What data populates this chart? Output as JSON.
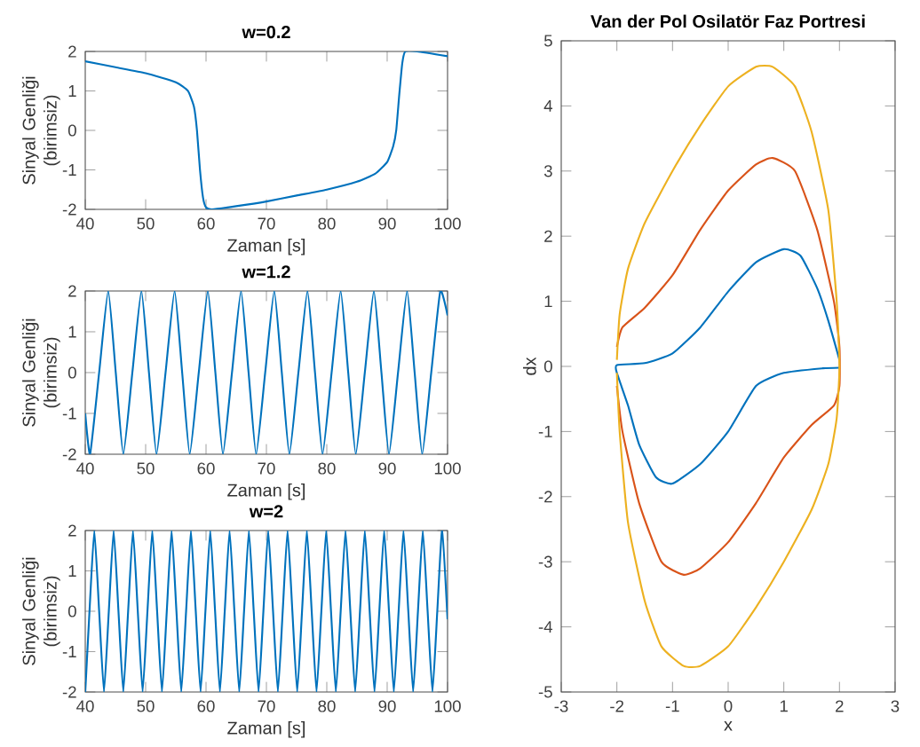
{
  "chart_data": [
    {
      "type": "line",
      "title": "w=0.2",
      "xlabel": "Zaman [s]",
      "ylabel": "Sinyal Genliği (birimsiz)",
      "color": "#0072bd",
      "x": [
        40,
        45,
        50,
        55,
        57,
        58,
        58.5,
        59,
        59.5,
        60,
        61,
        65,
        70,
        75,
        80,
        85,
        88,
        90,
        91,
        91.5,
        92,
        92.5,
        93,
        95,
        100
      ],
      "values": [
        1.75,
        1.6,
        1.45,
        1.22,
        1.0,
        0.6,
        0,
        -1,
        -1.7,
        -1.95,
        -2,
        -1.92,
        -1.8,
        -1.65,
        -1.5,
        -1.3,
        -1.1,
        -0.8,
        -0.4,
        0,
        0.9,
        1.7,
        2,
        2,
        1.88
      ],
      "xlim": [
        40,
        100
      ],
      "ylim": [
        -2,
        2
      ],
      "xticks": [
        40,
        50,
        60,
        70,
        80,
        90,
        100
      ],
      "yticks": [
        -2,
        -1,
        0,
        1,
        2
      ]
    },
    {
      "type": "line",
      "title": "w=1.2",
      "xlabel": "Zaman [s]",
      "ylabel": "Sinyal Genliği (birimsiz)",
      "color": "#0072bd",
      "x": [
        40,
        40.8,
        42.3,
        43.8,
        45.05,
        46.3,
        47.8,
        49.3,
        50.55,
        51.8,
        53.3,
        54.8,
        56.05,
        57.3,
        58.8,
        60.3,
        61.55,
        62.8,
        64.3,
        65.8,
        67.05,
        68.3,
        69.8,
        71.3,
        72.55,
        73.8,
        75.3,
        76.8,
        78.05,
        79.3,
        80.8,
        82.3,
        83.55,
        84.8,
        86.3,
        87.8,
        89.05,
        90.3,
        91.8,
        93.3,
        94.55,
        95.8,
        97.3,
        98.8,
        100
      ],
      "values": [
        -1,
        -2,
        0,
        2,
        0,
        -2,
        0,
        2,
        0,
        -2,
        0,
        2,
        0,
        -2,
        0,
        2,
        0,
        -2,
        0,
        2,
        0,
        -2,
        0,
        2,
        0,
        -2,
        0,
        2,
        0,
        -2,
        0,
        2,
        0,
        -2,
        0,
        2,
        0,
        -2,
        0,
        2,
        0,
        -2,
        0,
        2,
        1.4
      ],
      "xlim": [
        40,
        100
      ],
      "ylim": [
        -2,
        2
      ],
      "xticks": [
        40,
        50,
        60,
        70,
        80,
        90,
        100
      ],
      "yticks": [
        -2,
        -1,
        0,
        1,
        2
      ]
    },
    {
      "type": "line",
      "title": "w=2",
      "xlabel": "Zaman [s]",
      "ylabel": "Sinyal Genliği (birimsiz)",
      "color": "#0072bd",
      "x": [
        40,
        40.7,
        41.5,
        42.3,
        43.1,
        43.9,
        44.7,
        45.5,
        46.3,
        47.1,
        47.9,
        48.7,
        49.5,
        50.3,
        51.1,
        51.9,
        52.7,
        53.5,
        54.3,
        55.1,
        55.9,
        56.7,
        57.5,
        58.3,
        59.1,
        59.9,
        60.7,
        61.5,
        62.3,
        63.1,
        63.9,
        64.7,
        65.5,
        66.3,
        67.1,
        67.9,
        68.7,
        69.5,
        70.3,
        71.1,
        71.9,
        72.7,
        73.5,
        74.3,
        75.1,
        75.9,
        76.7,
        77.5,
        78.3,
        79.1,
        79.9,
        80.7,
        81.5,
        82.3,
        83.1,
        83.9,
        84.7,
        85.5,
        86.3,
        87.1,
        87.9,
        88.7,
        89.5,
        90.3,
        91.1,
        91.9,
        92.7,
        93.5,
        94.3,
        95.1,
        95.9,
        96.7,
        97.5,
        98.3,
        99.1,
        100
      ],
      "values": [
        -2,
        0,
        2,
        0,
        -2,
        0,
        2,
        0,
        -2,
        0,
        2,
        0,
        -2,
        0,
        2,
        0,
        -2,
        0,
        2,
        0,
        -2,
        0,
        2,
        0,
        -2,
        0,
        2,
        0,
        -2,
        0,
        2,
        0,
        -2,
        0,
        2,
        0,
        -2,
        0,
        2,
        0,
        -2,
        0,
        2,
        0,
        -2,
        0,
        2,
        0,
        -2,
        0,
        2,
        0,
        -2,
        0,
        2,
        0,
        -2,
        0,
        2,
        0,
        -2,
        0,
        2,
        0,
        -2,
        0,
        2,
        0,
        -2,
        0,
        2,
        0,
        -2,
        0,
        2,
        -0.2
      ],
      "xlim": [
        40,
        100
      ],
      "ylim": [
        -2,
        2
      ],
      "xticks": [
        40,
        50,
        60,
        70,
        80,
        90,
        100
      ],
      "yticks": [
        -2,
        -1,
        0,
        1,
        2
      ]
    },
    {
      "type": "line",
      "title": "Van der Pol Osilatör Faz Portresi",
      "xlabel": "x",
      "ylabel": "dx",
      "series": [
        {
          "color": "#0072bd",
          "x": [
            2,
            1.7,
            1,
            0.5,
            0,
            -0.5,
            -1,
            -1.3,
            -1.6,
            -1.8,
            -2,
            -2,
            -1.5,
            -1,
            -0.5,
            0,
            0.5,
            1,
            1.3,
            1.6,
            1.8,
            2
          ],
          "values": [
            -0.02,
            -0.03,
            -0.1,
            -0.3,
            -1.0,
            -1.5,
            -1.8,
            -1.7,
            -1.2,
            -0.6,
            -0.1,
            0.02,
            0.05,
            0.2,
            0.6,
            1.15,
            1.6,
            1.8,
            1.7,
            1.2,
            0.7,
            0.1
          ]
        },
        {
          "color": "#d95319",
          "x": [
            -2,
            -1.9,
            -1.5,
            -1,
            -0.5,
            0,
            0.5,
            0.8,
            1.2,
            1.6,
            1.9,
            2,
            2,
            1.9,
            1.5,
            1,
            0.5,
            0,
            -0.5,
            -0.8,
            -1.2,
            -1.6,
            -1.9,
            -2
          ],
          "values": [
            0.3,
            0.6,
            0.9,
            1.4,
            2.1,
            2.7,
            3.1,
            3.2,
            3.0,
            2.1,
            1.0,
            0.3,
            -0.3,
            -0.6,
            -0.9,
            -1.4,
            -2.1,
            -2.7,
            -3.1,
            -3.2,
            -3.0,
            -2.1,
            -1.0,
            -0.3
          ]
        },
        {
          "color": "#edb120",
          "x": [
            -2,
            -1.95,
            -1.8,
            -1.5,
            -1,
            -0.5,
            0,
            0.5,
            0.8,
            1.2,
            1.5,
            1.8,
            1.95,
            2,
            1.95,
            1.8,
            1.5,
            1,
            0.5,
            0,
            -0.5,
            -0.8,
            -1.2,
            -1.5,
            -1.8,
            -1.95,
            -2
          ],
          "values": [
            0.1,
            0.8,
            1.5,
            2.2,
            3.0,
            3.7,
            4.3,
            4.6,
            4.6,
            4.3,
            3.6,
            2.4,
            1.0,
            0,
            -0.8,
            -1.5,
            -2.2,
            -3.0,
            -3.7,
            -4.3,
            -4.6,
            -4.6,
            -4.3,
            -3.6,
            -2.4,
            -1.0,
            -0.1
          ]
        }
      ],
      "xlim": [
        -3,
        3
      ],
      "ylim": [
        -5,
        5
      ],
      "xticks": [
        -3,
        -2,
        -1,
        0,
        1,
        2,
        3
      ],
      "yticks": [
        -5,
        -4,
        -3,
        -2,
        -1,
        0,
        1,
        2,
        3,
        4,
        5
      ]
    }
  ]
}
